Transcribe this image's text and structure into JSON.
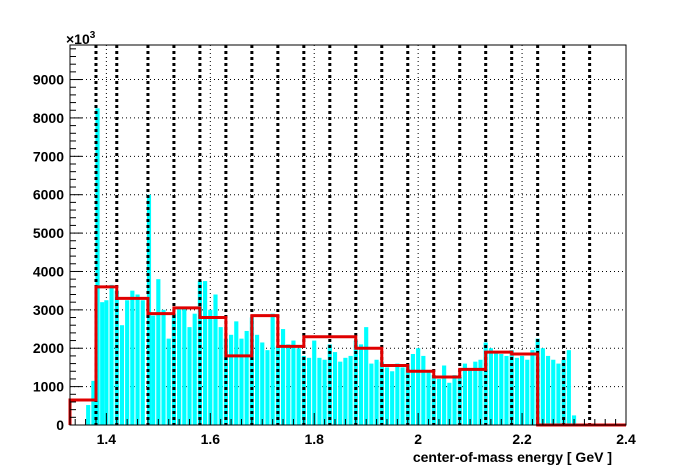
{
  "chart_data": {
    "type": "bar",
    "xlabel": "center-of-mass energy [ GeV ]",
    "ylabel": "",
    "y_multiplier": "×10",
    "y_multiplier_exp": "3",
    "xlim": [
      1.33,
      2.4
    ],
    "ylim": [
      0,
      9900
    ],
    "x_ticks": [
      1.4,
      1.6,
      1.8,
      2,
      2.2,
      2.4
    ],
    "x_tick_labels": [
      "1.4",
      "1.6",
      "1.8",
      "2",
      "2.2",
      "2.4"
    ],
    "y_ticks": [
      0,
      1000,
      2000,
      3000,
      4000,
      5000,
      6000,
      7000,
      8000,
      9000
    ],
    "y_tick_labels": [
      "0",
      "1000",
      "2000",
      "3000",
      "4000",
      "5000",
      "6000",
      "7000",
      "8000",
      "9000"
    ],
    "grid": true,
    "grid_style": "dotted",
    "bin_edges": [
      1.33,
      1.38,
      1.42,
      1.48,
      1.53,
      1.58,
      1.63,
      1.68,
      1.73,
      1.78,
      1.83,
      1.88,
      1.93,
      1.98,
      2.03,
      2.08,
      2.13,
      2.18,
      2.23,
      2.28,
      2.33,
      2.4
    ],
    "series": [
      {
        "style": "cyan-histogram",
        "color": "#00ffff",
        "bar_width": 0.008,
        "points": [
          [
            1.365,
            520
          ],
          [
            1.375,
            1150
          ],
          [
            1.383,
            8250
          ],
          [
            1.392,
            3200
          ],
          [
            1.4,
            3250
          ],
          [
            1.41,
            3650
          ],
          [
            1.42,
            3500
          ],
          [
            1.43,
            2600
          ],
          [
            1.44,
            3250
          ],
          [
            1.45,
            3500
          ],
          [
            1.46,
            3400
          ],
          [
            1.47,
            3250
          ],
          [
            1.482,
            6000
          ],
          [
            1.49,
            2850
          ],
          [
            1.5,
            3800
          ],
          [
            1.51,
            3000
          ],
          [
            1.52,
            2250
          ],
          [
            1.53,
            2900
          ],
          [
            1.54,
            3050
          ],
          [
            1.55,
            3050
          ],
          [
            1.56,
            2550
          ],
          [
            1.57,
            2900
          ],
          [
            1.58,
            3750
          ],
          [
            1.59,
            3750
          ],
          [
            1.6,
            3000
          ],
          [
            1.61,
            3400
          ],
          [
            1.62,
            2550
          ],
          [
            1.63,
            2250
          ],
          [
            1.64,
            2350
          ],
          [
            1.65,
            2700
          ],
          [
            1.66,
            2250
          ],
          [
            1.67,
            2450
          ],
          [
            1.68,
            2800
          ],
          [
            1.69,
            2350
          ],
          [
            1.7,
            2150
          ],
          [
            1.71,
            1950
          ],
          [
            1.72,
            2900
          ],
          [
            1.73,
            2050
          ],
          [
            1.74,
            2500
          ],
          [
            1.75,
            2100
          ],
          [
            1.76,
            2200
          ],
          [
            1.77,
            2000
          ],
          [
            1.78,
            1800
          ],
          [
            1.79,
            1750
          ],
          [
            1.8,
            2200
          ],
          [
            1.81,
            1750
          ],
          [
            1.82,
            1700
          ],
          [
            1.83,
            2100
          ],
          [
            1.84,
            1900
          ],
          [
            1.85,
            1650
          ],
          [
            1.86,
            1750
          ],
          [
            1.87,
            1800
          ],
          [
            1.88,
            2200
          ],
          [
            1.89,
            2100
          ],
          [
            1.9,
            2550
          ],
          [
            1.91,
            1600
          ],
          [
            1.92,
            1700
          ],
          [
            1.93,
            1650
          ],
          [
            1.94,
            1500
          ],
          [
            1.95,
            1400
          ],
          [
            1.96,
            1600
          ],
          [
            1.97,
            1500
          ],
          [
            1.98,
            1550
          ],
          [
            1.99,
            1850
          ],
          [
            2.0,
            2000
          ],
          [
            2.01,
            1800
          ],
          [
            2.02,
            1400
          ],
          [
            2.03,
            1300
          ],
          [
            2.04,
            1200
          ],
          [
            2.05,
            1550
          ],
          [
            2.06,
            1100
          ],
          [
            2.07,
            1300
          ],
          [
            2.08,
            1250
          ],
          [
            2.09,
            1600
          ],
          [
            2.1,
            1450
          ],
          [
            2.11,
            1650
          ],
          [
            2.12,
            1700
          ],
          [
            2.13,
            2150
          ],
          [
            2.14,
            2000
          ],
          [
            2.15,
            1900
          ],
          [
            2.16,
            1850
          ],
          [
            2.17,
            1800
          ],
          [
            2.18,
            1950
          ],
          [
            2.19,
            1750
          ],
          [
            2.2,
            1800
          ],
          [
            2.21,
            1700
          ],
          [
            2.22,
            1950
          ],
          [
            2.23,
            2250
          ],
          [
            2.24,
            2000
          ],
          [
            2.25,
            1800
          ],
          [
            2.26,
            1700
          ],
          [
            2.27,
            1600
          ],
          [
            2.28,
            1700
          ],
          [
            2.29,
            1950
          ],
          [
            2.3,
            250
          ]
        ]
      },
      {
        "style": "red-step",
        "color": "#e00000",
        "values": [
          650,
          3600,
          3300,
          2900,
          3050,
          2800,
          1800,
          2850,
          2050,
          2300,
          2300,
          2000,
          1550,
          1400,
          1250,
          1450,
          1900,
          1850,
          0,
          0,
          0
        ]
      }
    ]
  }
}
